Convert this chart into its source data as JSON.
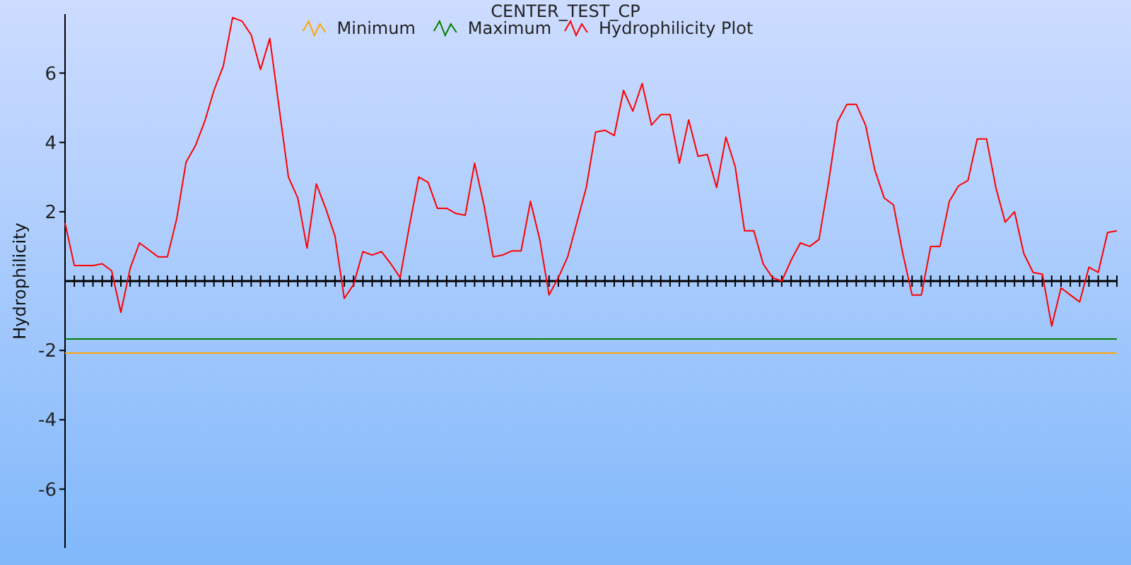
{
  "chart_data": {
    "type": "line",
    "title": "CENTER_TEST_CP",
    "ylabel": "Hydrophilicity",
    "categories": [
      null,
      null,
      null,
      null,
      null,
      null,
      null,
      null,
      null,
      null,
      null,
      null,
      null,
      null,
      null,
      null,
      null,
      null,
      null,
      null,
      null,
      null,
      null,
      null,
      null,
      null,
      null,
      null,
      null,
      null,
      null,
      null,
      null,
      null,
      null,
      null,
      null,
      null,
      null,
      null,
      null,
      null,
      null,
      null,
      null,
      null,
      null,
      null,
      null,
      null,
      null,
      null,
      null,
      null,
      null,
      null,
      null,
      null,
      null,
      null,
      null,
      null,
      null,
      null,
      null,
      null,
      null,
      null,
      null,
      null,
      null,
      null,
      null,
      null,
      null,
      null,
      null,
      null,
      null,
      null,
      null,
      null,
      null,
      null,
      null,
      null,
      null,
      null,
      null,
      null,
      null,
      null,
      null,
      null,
      null,
      null,
      null,
      null,
      null,
      null,
      null,
      null,
      null,
      null,
      null,
      null,
      null,
      null,
      null,
      null,
      null,
      null,
      null,
      null
    ],
    "series": [
      {
        "name": "Minimum",
        "color": "#ffa500",
        "values": [
          -2.08,
          -2.08,
          -2.08,
          -2.08,
          -2.08,
          -2.08,
          -2.08,
          -2.08,
          -2.08,
          -2.08,
          -2.08,
          -2.08,
          -2.08,
          -2.08,
          -2.08,
          -2.08,
          -2.08,
          -2.08,
          -2.08,
          -2.08,
          -2.08,
          -2.08,
          -2.08,
          -2.08,
          -2.08,
          -2.08,
          -2.08,
          -2.08,
          -2.08,
          -2.08,
          -2.08,
          -2.08,
          -2.08,
          -2.08,
          -2.08,
          -2.08,
          -2.08,
          -2.08,
          -2.08,
          -2.08,
          -2.08,
          -2.08,
          -2.08,
          -2.08,
          -2.08,
          -2.08,
          -2.08,
          -2.08,
          -2.08,
          -2.08,
          -2.08,
          -2.08,
          -2.08,
          -2.08,
          -2.08,
          -2.08,
          -2.08,
          -2.08,
          -2.08,
          -2.08,
          -2.08,
          -2.08,
          -2.08,
          -2.08,
          -2.08,
          -2.08,
          -2.08,
          -2.08,
          -2.08,
          -2.08,
          -2.08,
          -2.08,
          -2.08,
          -2.08,
          -2.08,
          -2.08,
          -2.08,
          -2.08,
          -2.08,
          -2.08,
          -2.08,
          -2.08,
          -2.08,
          -2.08,
          -2.08,
          -2.08,
          -2.08,
          -2.08,
          -2.08,
          -2.08,
          -2.08,
          -2.08,
          -2.08,
          -2.08,
          -2.08,
          -2.08,
          -2.08,
          -2.08,
          -2.08,
          -2.08,
          -2.08,
          -2.08,
          -2.08,
          -2.08,
          -2.08,
          -2.08,
          -2.08,
          -2.08,
          -2.08,
          -2.08,
          -2.08,
          -2.08,
          -2.08,
          -2.08
        ]
      },
      {
        "name": "Maximum",
        "color": "#008000",
        "values": [
          -1.67,
          -1.67,
          -1.67,
          -1.67,
          -1.67,
          -1.67,
          -1.67,
          -1.67,
          -1.67,
          -1.67,
          -1.67,
          -1.67,
          -1.67,
          -1.67,
          -1.67,
          -1.67,
          -1.67,
          -1.67,
          -1.67,
          -1.67,
          -1.67,
          -1.67,
          -1.67,
          -1.67,
          -1.67,
          -1.67,
          -1.67,
          -1.67,
          -1.67,
          -1.67,
          -1.67,
          -1.67,
          -1.67,
          -1.67,
          -1.67,
          -1.67,
          -1.67,
          -1.67,
          -1.67,
          -1.67,
          -1.67,
          -1.67,
          -1.67,
          -1.67,
          -1.67,
          -1.67,
          -1.67,
          -1.67,
          -1.67,
          -1.67,
          -1.67,
          -1.67,
          -1.67,
          -1.67,
          -1.67,
          -1.67,
          -1.67,
          -1.67,
          -1.67,
          -1.67,
          -1.67,
          -1.67,
          -1.67,
          -1.67,
          -1.67,
          -1.67,
          -1.67,
          -1.67,
          -1.67,
          -1.67,
          -1.67,
          -1.67,
          -1.67,
          -1.67,
          -1.67,
          -1.67,
          -1.67,
          -1.67,
          -1.67,
          -1.67,
          -1.67,
          -1.67,
          -1.67,
          -1.67,
          -1.67,
          -1.67,
          -1.67,
          -1.67,
          -1.67,
          -1.67,
          -1.67,
          -1.67,
          -1.67,
          -1.67,
          -1.67,
          -1.67,
          -1.67,
          -1.67,
          -1.67,
          -1.67,
          -1.67,
          -1.67,
          -1.67,
          -1.67,
          -1.67,
          -1.67,
          -1.67,
          -1.67,
          -1.67,
          -1.67,
          -1.67,
          -1.67,
          -1.67,
          -1.67
        ]
      },
      {
        "name": "Hydrophilicity Plot",
        "color": "#ff0000",
        "values": [
          1.67,
          0.45,
          0.45,
          0.45,
          0.5,
          0.3,
          -0.9,
          0.37,
          1.1,
          0.9,
          0.7,
          0.7,
          1.8,
          3.43,
          3.9,
          4.6,
          5.5,
          6.2,
          7.6,
          7.5,
          7.1,
          6.1,
          7.0,
          5.0,
          3.0,
          2.4,
          0.95,
          2.8,
          2.1,
          1.3,
          -0.5,
          -0.1,
          0.85,
          0.75,
          0.85,
          0.5,
          0.1,
          1.6,
          3.0,
          2.85,
          2.1,
          2.1,
          1.95,
          1.9,
          3.4,
          2.2,
          0.7,
          0.75,
          0.87,
          0.87,
          2.3,
          1.2,
          -0.4,
          0.1,
          0.7,
          1.7,
          2.7,
          4.3,
          4.35,
          4.2,
          5.5,
          4.9,
          5.7,
          4.5,
          4.8,
          4.8,
          3.4,
          4.65,
          3.6,
          3.65,
          2.7,
          4.15,
          3.3,
          1.45,
          1.45,
          0.5,
          0.1,
          0.0,
          0.6,
          1.1,
          1.0,
          1.2,
          2.8,
          4.6,
          5.1,
          5.1,
          4.5,
          3.2,
          2.4,
          2.2,
          0.8,
          -0.4,
          -0.4,
          1.0,
          1.0,
          2.3,
          2.75,
          2.9,
          4.1,
          4.1,
          2.7,
          1.7,
          2.0,
          0.8,
          0.25,
          0.2,
          -1.3,
          -0.2,
          -0.4,
          -0.6,
          0.4,
          0.25,
          1.4,
          1.45
        ]
      }
    ],
    "ylim": [
      -7.7,
      7.7
    ],
    "yticks": [
      -6,
      -4,
      -2,
      2,
      4,
      6
    ],
    "grid": false,
    "legend": "top",
    "marker": "none",
    "line_style": "solid",
    "tick_labels": "y"
  }
}
